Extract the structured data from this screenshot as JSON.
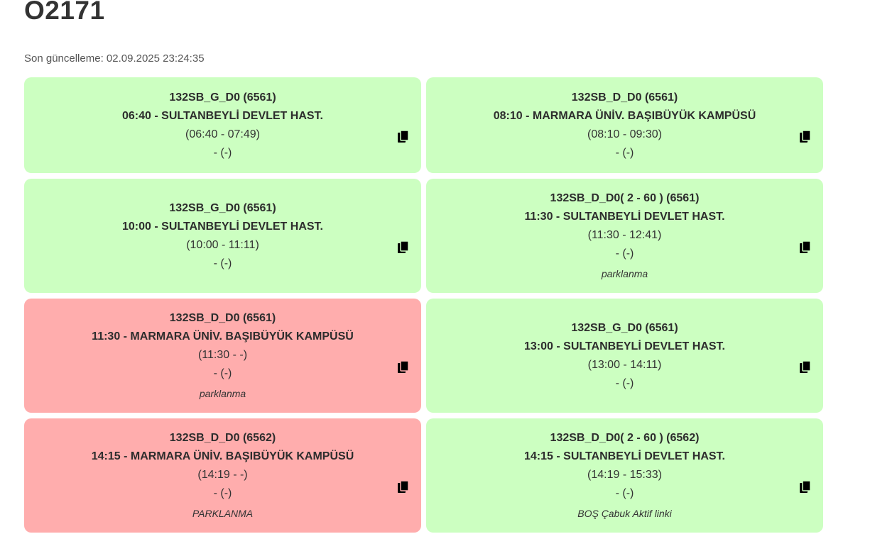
{
  "page": {
    "title": "O2171",
    "last_updated": "Son güncelleme: 02.09.2025 23:24:35"
  },
  "colors": {
    "ok": "#ccffc1",
    "alert": "#ffadad"
  },
  "cards": [
    {
      "route": "132SB_G_D0 (6561)",
      "trip": "06:40 - SULTANBEYLİ DEVLET HAST.",
      "times": "(06:40 - 07:49)",
      "extra": "- (-)",
      "note": "",
      "status": "green"
    },
    {
      "route": "132SB_D_D0 (6561)",
      "trip": "08:10 - MARMARA ÜNİV. BAŞIBÜYÜK KAMPÜSÜ",
      "times": "(08:10 - 09:30)",
      "extra": "- (-)",
      "note": "",
      "status": "green"
    },
    {
      "route": "132SB_G_D0 (6561)",
      "trip": "10:00 - SULTANBEYLİ DEVLET HAST.",
      "times": "(10:00 - 11:11)",
      "extra": "- (-)",
      "note": "",
      "status": "green"
    },
    {
      "route": "132SB_D_D0( 2 - 60 ) (6561)",
      "trip": "11:30 - SULTANBEYLİ DEVLET HAST.",
      "times": "(11:30 - 12:41)",
      "extra": "- (-)",
      "note": "parklanma",
      "status": "green"
    },
    {
      "route": "132SB_D_D0 (6561)",
      "trip": "11:30 - MARMARA ÜNİV. BAŞIBÜYÜK KAMPÜSÜ",
      "times": "(11:30 - -)",
      "extra": "- (-)",
      "note": "parklanma",
      "status": "red"
    },
    {
      "route": "132SB_G_D0 (6561)",
      "trip": "13:00 - SULTANBEYLİ DEVLET HAST.",
      "times": "(13:00 - 14:11)",
      "extra": "- (-)",
      "note": "",
      "status": "green"
    },
    {
      "route": "132SB_D_D0 (6562)",
      "trip": "14:15 - MARMARA ÜNİV. BAŞIBÜYÜK KAMPÜSÜ",
      "times": "(14:19 - -)",
      "extra": "- (-)",
      "note": "PARKLANMA",
      "status": "red"
    },
    {
      "route": "132SB_D_D0( 2 - 60 ) (6562)",
      "trip": "14:15 - SULTANBEYLİ DEVLET HAST.",
      "times": "(14:19 - 15:33)",
      "extra": "- (-)",
      "note": "BOŞ Çabuk Aktif linki",
      "status": "green"
    }
  ],
  "icons": {
    "copy": "copy-icon"
  }
}
